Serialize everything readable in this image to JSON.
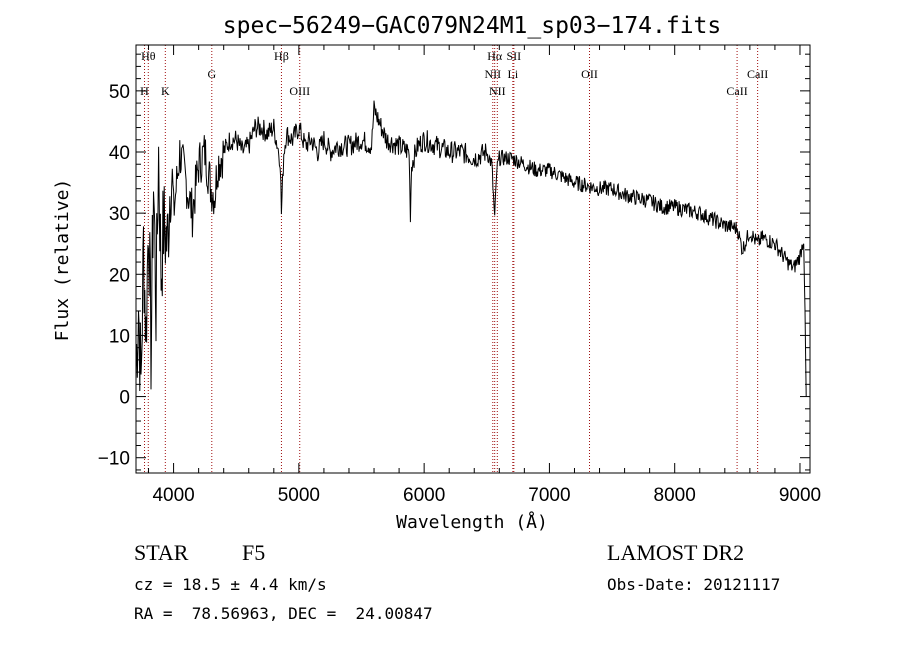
{
  "chart_data": {
    "type": "line",
    "title": "spec−56249−GAC079N24M1_sp03−174.fits",
    "xlabel": "Wavelength (Å)",
    "ylabel": "Flux (relative)",
    "xlim": [
      3700,
      9080
    ],
    "ylim": [
      -12.5,
      57.5
    ],
    "xticks": [
      4000,
      5000,
      6000,
      7000,
      8000,
      9000
    ],
    "yticks": [
      -10,
      0,
      10,
      20,
      30,
      40,
      50
    ],
    "ytick_labels": [
      "−10",
      "0",
      "10",
      "20",
      "30",
      "40",
      "50"
    ],
    "series": [
      {
        "name": "flux",
        "x": [
          3700,
          3720,
          3740,
          3760,
          3780,
          3800,
          3820,
          3840,
          3860,
          3880,
          3900,
          3920,
          3950,
          3980,
          4000,
          4050,
          4100,
          4150,
          4200,
          4250,
          4300,
          4330,
          4350,
          4400,
          4450,
          4500,
          4550,
          4600,
          4650,
          4700,
          4750,
          4800,
          4850,
          4861,
          4880,
          4900,
          4950,
          5000,
          5050,
          5100,
          5150,
          5200,
          5250,
          5300,
          5400,
          5500,
          5580,
          5600,
          5700,
          5800,
          5880,
          5890,
          5900,
          5950,
          6000,
          6100,
          6200,
          6300,
          6400,
          6500,
          6540,
          6563,
          6580,
          6600,
          6700,
          6800,
          6900,
          7000,
          7100,
          7200,
          7300,
          7400,
          7500,
          7600,
          7700,
          7800,
          7900,
          8000,
          8100,
          8200,
          8300,
          8400,
          8500,
          8540,
          8600,
          8660,
          8700,
          8800,
          8900,
          8950,
          9000,
          9030,
          9050
        ],
        "y": [
          5,
          15,
          2,
          25,
          10,
          30,
          8,
          35,
          15,
          40,
          20,
          28,
          25,
          38,
          30,
          40,
          35,
          30,
          38,
          40,
          34,
          33,
          38,
          40,
          42,
          42,
          40,
          41,
          44,
          44,
          43,
          44,
          39,
          30,
          40,
          43,
          42,
          44,
          41,
          42,
          40,
          42,
          40,
          41,
          41,
          42,
          41,
          47,
          42,
          41,
          40,
          30,
          38,
          41,
          42,
          41,
          40,
          40,
          39,
          40,
          38,
          29,
          37,
          39,
          39,
          38,
          37,
          37,
          36,
          35,
          34.5,
          34,
          34,
          33,
          32.5,
          32,
          31,
          31,
          30.5,
          30,
          29,
          28,
          27.5,
          24,
          27,
          25,
          26,
          25,
          22,
          21,
          23,
          26,
          0
        ]
      }
    ],
    "spectral_lines": [
      {
        "name": "Hθ",
        "wavelength": 3798,
        "row": 1
      },
      {
        "name": "H",
        "wavelength": 3768,
        "row": 3
      },
      {
        "name": "K",
        "wavelength": 3934,
        "row": 3
      },
      {
        "name": "G",
        "wavelength": 4305,
        "row": 2
      },
      {
        "name": "Hβ",
        "wavelength": 4861,
        "row": 1
      },
      {
        "name": "OIII",
        "wavelength": 5007,
        "row": 3
      },
      {
        "name": "Hα",
        "wavelength": 6563,
        "row": 1
      },
      {
        "name": "SII",
        "wavelength": 6716,
        "row": 1
      },
      {
        "name": "NII",
        "wavelength": 6548,
        "row": 2
      },
      {
        "name": "Li",
        "wavelength": 6708,
        "row": 2
      },
      {
        "name": "NII",
        "wavelength": 6584,
        "row": 3
      },
      {
        "name": "OII",
        "wavelength": 7320,
        "row": 2
      },
      {
        "name": "CaII",
        "wavelength": 8498,
        "row": 3
      },
      {
        "name": "CaII",
        "wavelength": 8662,
        "row": 2
      }
    ],
    "marker_color": "#a01010"
  },
  "info": {
    "object_class": "STAR",
    "subclass": "F5",
    "survey": "LAMOST DR2",
    "redshift_line": "cz = 18.5 ± 4.4 km/s",
    "obs_date": "Obs-Date: 20121117",
    "coords": "RA =  78.56963, DEC =  24.00847"
  }
}
